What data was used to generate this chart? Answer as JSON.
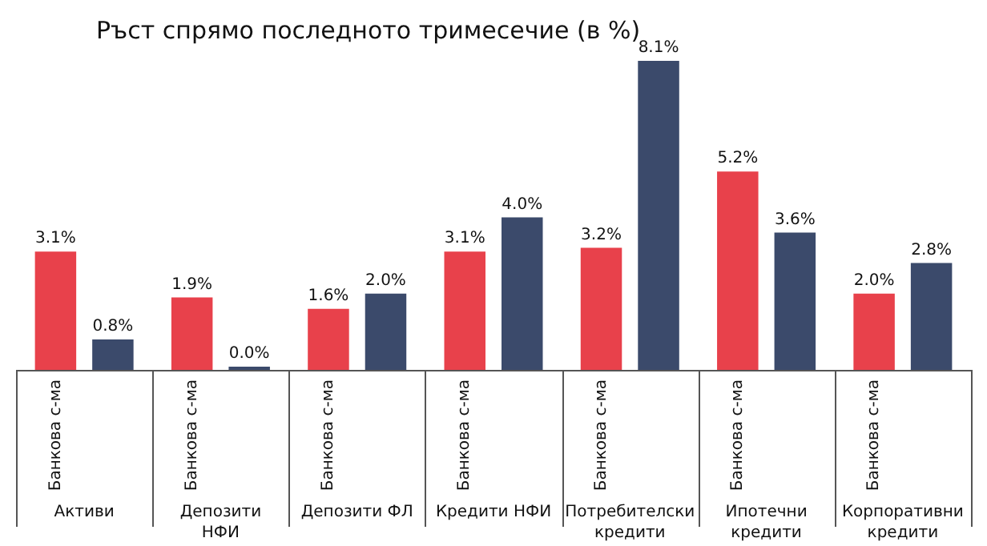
{
  "chart_data": {
    "type": "bar",
    "title": "Ръст спрямо последното тримесечие (в %)",
    "categories": [
      "Активи",
      "Депозити НФИ",
      "Депозити ФЛ",
      "Кредити НФИ",
      "Потребителски кредити",
      "Ипотечни кредити",
      "Корпоративни кредити"
    ],
    "series": [
      {
        "name": "Банкова с-ма",
        "color": "#e8414b",
        "values": [
          3.1,
          1.9,
          1.6,
          3.1,
          3.2,
          5.2,
          2.0
        ],
        "value_labels": [
          "3.1%",
          "1.9%",
          "1.6%",
          "3.1%",
          "3.2%",
          "5.2%",
          "2.0%"
        ]
      },
      {
        "color": "#3b4a6b",
        "values": [
          0.8,
          0.0,
          2.0,
          4.0,
          8.1,
          3.6,
          2.8
        ],
        "value_labels": [
          "0.8%",
          "0.0%",
          "2.0%",
          "4.0%",
          "8.1%",
          "3.6%",
          "2.8%"
        ]
      }
    ],
    "legend": false
  }
}
